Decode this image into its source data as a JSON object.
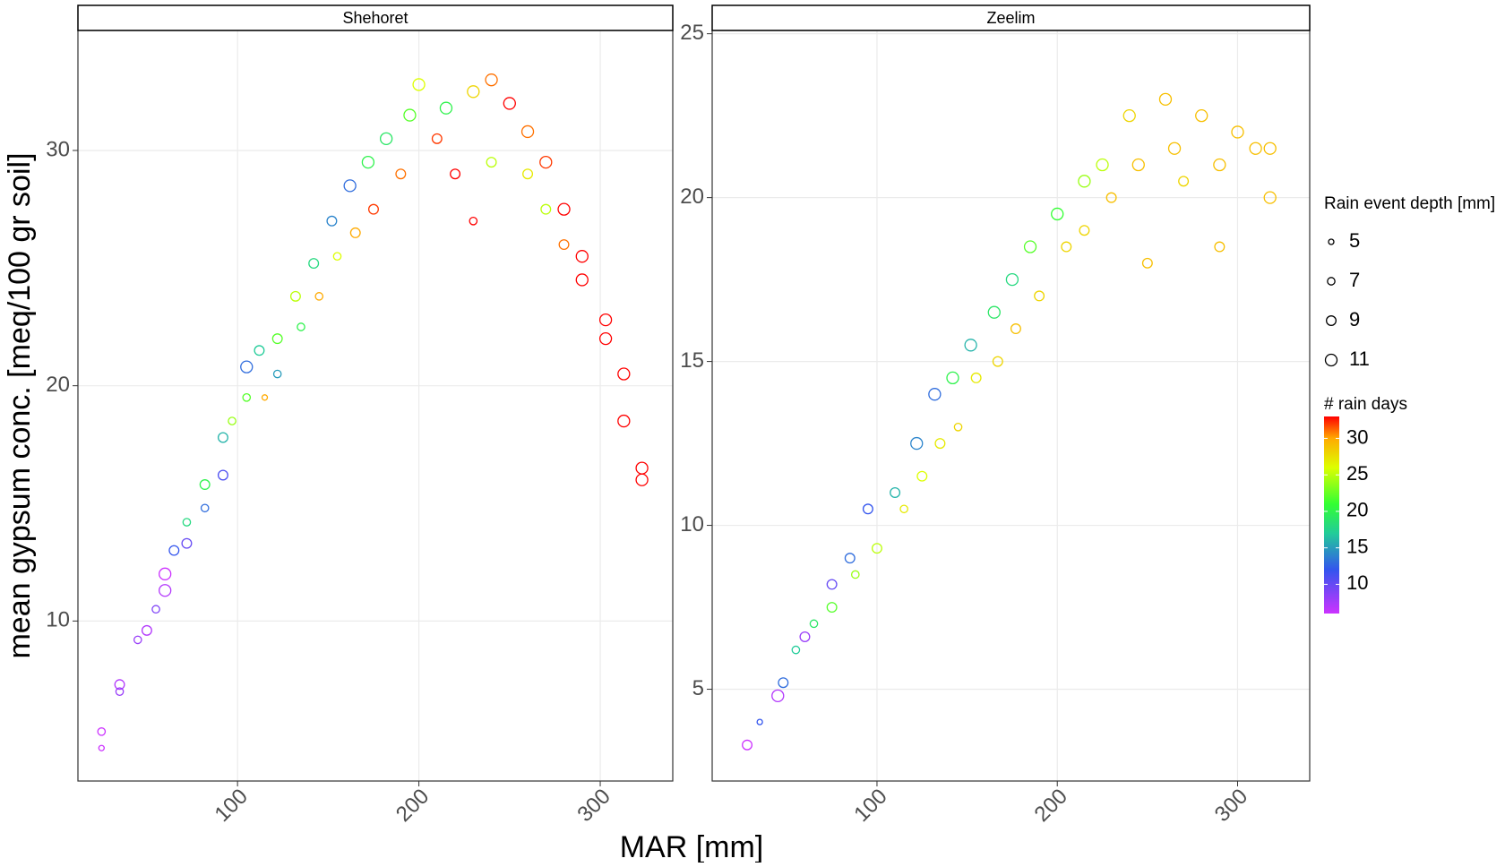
{
  "chart_data": [
    {
      "type": "scatter",
      "title": "Shehoret",
      "xlim": [
        12,
        340
      ],
      "xticks": [
        100,
        200,
        300
      ],
      "ylim": [
        3.2,
        35.1
      ],
      "yticks": [
        10,
        20,
        30
      ],
      "x": [
        25,
        25,
        35,
        35,
        45,
        50,
        55,
        60,
        60,
        65,
        72,
        72,
        82,
        82,
        92,
        92,
        97,
        105,
        105,
        112,
        115,
        122,
        122,
        132,
        135,
        142,
        145,
        152,
        155,
        162,
        165,
        172,
        175,
        182,
        190,
        195,
        200,
        210,
        215,
        220,
        230,
        230,
        240,
        240,
        250,
        260,
        260,
        270,
        270,
        280,
        280,
        290,
        290,
        303,
        303,
        313,
        313,
        323,
        323
      ],
      "y": [
        5.3,
        4.6,
        7.3,
        7.0,
        9.2,
        9.6,
        10.5,
        12.0,
        11.3,
        13.0,
        14.2,
        13.3,
        15.8,
        14.8,
        17.8,
        16.2,
        18.5,
        20.8,
        19.5,
        21.5,
        19.5,
        22.0,
        20.5,
        23.8,
        22.5,
        25.2,
        23.8,
        27.0,
        25.5,
        28.5,
        26.5,
        29.5,
        27.5,
        30.5,
        29.0,
        31.5,
        32.8,
        30.5,
        31.8,
        29.0,
        32.5,
        27.0,
        33.0,
        29.5,
        32.0,
        30.8,
        29.0,
        29.5,
        27.5,
        27.5,
        26.0,
        25.5,
        24.5,
        22.8,
        22.0,
        20.5,
        18.5,
        16.5,
        16.0
      ],
      "size": [
        7,
        5,
        9,
        7,
        7,
        9,
        7,
        11,
        11,
        9,
        7,
        9,
        9,
        7,
        9,
        9,
        7,
        11,
        7,
        9,
        5,
        9,
        7,
        9,
        7,
        9,
        7,
        9,
        7,
        11,
        9,
        11,
        9,
        11,
        9,
        11,
        11,
        9,
        11,
        9,
        11,
        7,
        11,
        9,
        11,
        11,
        9,
        11,
        9,
        11,
        9,
        11,
        11,
        11,
        11,
        11,
        11,
        11,
        11
      ],
      "rain_days": [
        6,
        6,
        7,
        8,
        8,
        7,
        9,
        6,
        7,
        12,
        18,
        10,
        20,
        13,
        16,
        11,
        24,
        13,
        22,
        17,
        30,
        22,
        15,
        25,
        20,
        18,
        30,
        14,
        26,
        13,
        30,
        20,
        32,
        19,
        31,
        22,
        26,
        32,
        20,
        33,
        28,
        33,
        31,
        25,
        33,
        31,
        27,
        32,
        25,
        33,
        31,
        33,
        33,
        33,
        33,
        33,
        33,
        33,
        33
      ]
    },
    {
      "type": "scatter",
      "title": "Zeelim",
      "xlim": [
        8.6,
        340
      ],
      "xticks": [
        100,
        200,
        300
      ],
      "ylim": [
        2.2,
        25.1
      ],
      "yticks": [
        5,
        10,
        15,
        20,
        25
      ],
      "x": [
        28,
        35,
        45,
        48,
        55,
        60,
        65,
        75,
        75,
        85,
        88,
        95,
        100,
        110,
        115,
        122,
        125,
        132,
        135,
        142,
        145,
        152,
        155,
        165,
        167,
        175,
        177,
        185,
        190,
        200,
        205,
        215,
        215,
        225,
        230,
        240,
        245,
        250,
        260,
        265,
        270,
        280,
        290,
        290,
        300,
        310,
        318,
        318
      ],
      "y": [
        3.3,
        4.0,
        4.8,
        5.2,
        6.2,
        6.6,
        7.0,
        8.2,
        7.5,
        9.0,
        8.5,
        10.5,
        9.3,
        11.0,
        10.5,
        12.5,
        11.5,
        14.0,
        12.5,
        14.5,
        13.0,
        15.5,
        14.5,
        16.5,
        15.0,
        17.5,
        16.0,
        18.5,
        17.0,
        19.5,
        18.5,
        20.5,
        19.0,
        21.0,
        20.0,
        22.5,
        21.0,
        18.0,
        23.0,
        21.5,
        20.5,
        22.5,
        21.0,
        18.5,
        22.0,
        21.5,
        20.0,
        21.5
      ],
      "size": [
        9,
        5,
        11,
        9,
        7,
        9,
        7,
        9,
        9,
        9,
        7,
        9,
        9,
        9,
        7,
        11,
        9,
        11,
        9,
        11,
        7,
        11,
        9,
        11,
        9,
        11,
        9,
        11,
        9,
        11,
        9,
        11,
        9,
        11,
        9,
        11,
        11,
        9,
        11,
        11,
        9,
        11,
        11,
        9,
        11,
        11,
        11,
        11
      ],
      "rain_days": [
        6,
        12,
        7,
        13,
        17,
        8,
        19,
        10,
        22,
        13,
        24,
        12,
        25,
        16,
        27,
        14,
        26,
        13,
        27,
        20,
        28,
        16,
        27,
        19,
        28,
        18,
        29,
        22,
        28,
        21,
        28,
        24,
        28,
        25,
        29,
        28,
        29,
        29,
        29,
        29,
        28,
        29,
        29,
        29,
        29,
        29,
        29,
        29
      ]
    }
  ],
  "xlabel": "MAR [mm]",
  "ylabel": "mean gypsum conc. [meq/100 gr soil]",
  "legend": {
    "size_title": "Rain event depth [mm]",
    "sizes": [
      5,
      7,
      9,
      11
    ],
    "color_title": "# rain days",
    "color_lim": [
      6,
      33
    ],
    "color_ticks": [
      10,
      15,
      20,
      25,
      30
    ],
    "color_stops": [
      {
        "value": 6,
        "color": "#cc33ff"
      },
      {
        "value": 12,
        "color": "#3355ee"
      },
      {
        "value": 17,
        "color": "#22cc99"
      },
      {
        "value": 21,
        "color": "#33ff33"
      },
      {
        "value": 26,
        "color": "#ddff00"
      },
      {
        "value": 30,
        "color": "#ffaa00"
      },
      {
        "value": 33,
        "color": "#ff0000"
      }
    ]
  }
}
